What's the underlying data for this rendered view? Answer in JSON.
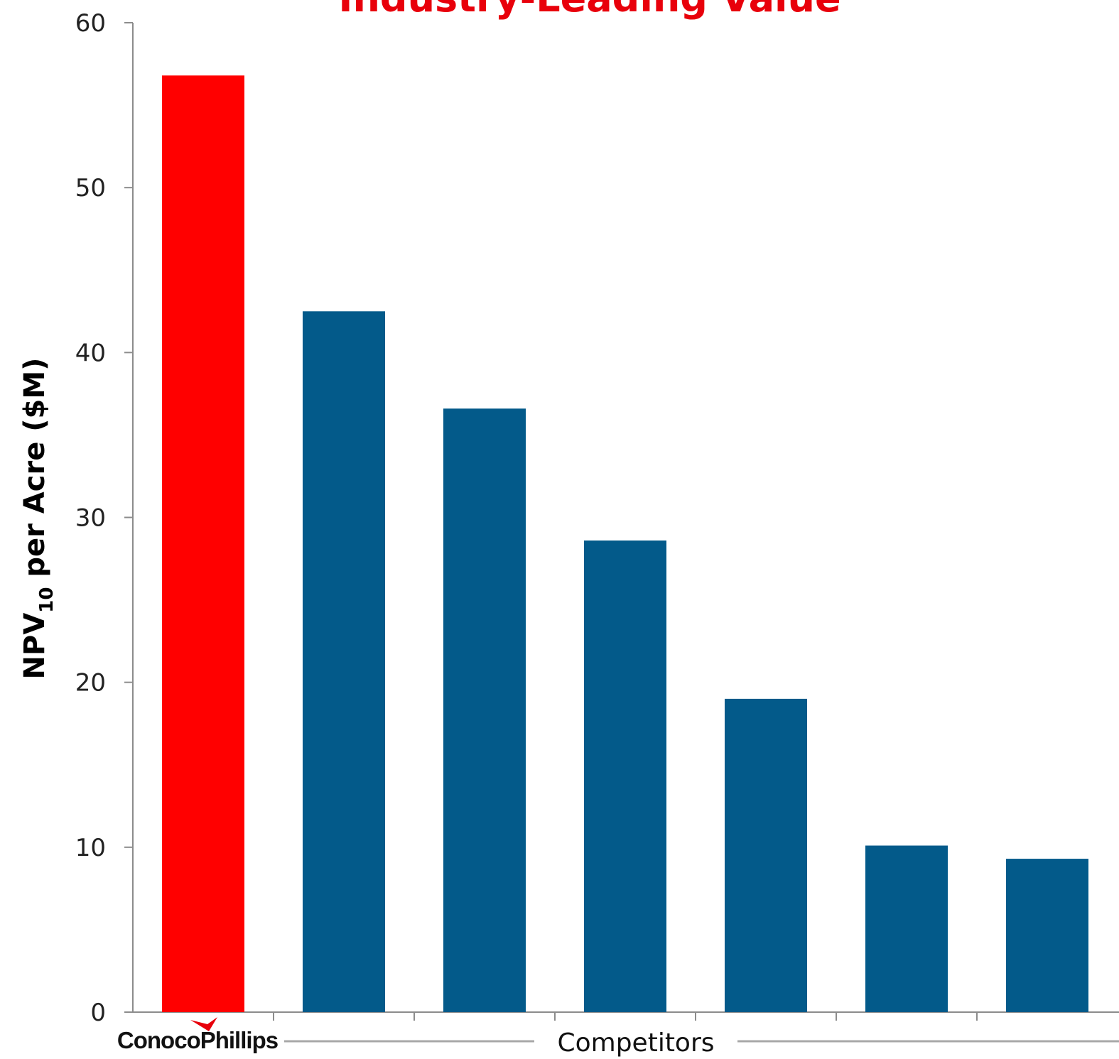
{
  "chart_data": {
    "type": "bar",
    "title": "Industry-Leading Value",
    "ylabel": "NPV10 per Acre ($M)",
    "ylabel_main": "NPV",
    "ylabel_sub": "10",
    "ylabel_rest": " per Acre ($M)",
    "xlabel": "",
    "ylim": [
      0,
      60
    ],
    "yticks": [
      "0",
      "10",
      "20",
      "30",
      "40",
      "50",
      "60"
    ],
    "categories": [
      "ConocoPhillips",
      "Competitors",
      "Competitors",
      "Competitors",
      "Competitors",
      "Competitors",
      "Competitors"
    ],
    "values": [
      56.8,
      42.5,
      36.6,
      28.6,
      19.0,
      10.1,
      9.3
    ],
    "bar_colors": [
      "#FF0000",
      "#035A8A",
      "#035A8A",
      "#035A8A",
      "#035A8A",
      "#035A8A",
      "#035A8A"
    ],
    "group_labels": {
      "company": "ConocoPhillips",
      "competitors": "Competitors"
    },
    "grid": false,
    "legend": "none"
  },
  "colors": {
    "title": "#E8000B",
    "highlight": "#FF0000",
    "competitor": "#035A8A",
    "axis": "#8C8C8C"
  }
}
